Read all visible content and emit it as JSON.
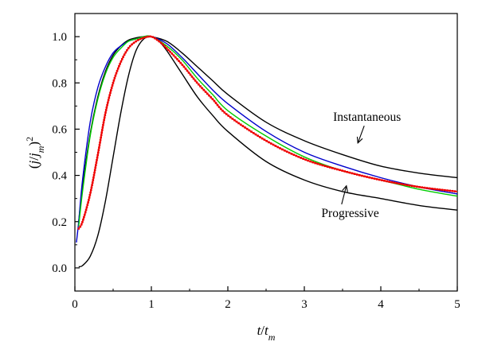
{
  "chart_data": {
    "type": "line",
    "xlabel": "t/tm",
    "ylabel": "(j/jm)2",
    "xlim": [
      0,
      5
    ],
    "ylim": [
      -0.1,
      1.1
    ],
    "x_ticks": [
      0,
      1,
      2,
      3,
      4,
      5
    ],
    "y_ticks": [
      0.0,
      0.2,
      0.4,
      0.6,
      0.8,
      1.0
    ],
    "x_tick_labels": [
      "0",
      "1",
      "2",
      "3",
      "4",
      "5"
    ],
    "y_tick_labels": [
      "0.0",
      "0.2",
      "0.4",
      "0.6",
      "0.8",
      "1.0"
    ],
    "grid": false,
    "legend": "none",
    "series": [
      {
        "color": "#000000",
        "x": [
          0.05,
          0.1,
          0.2,
          0.3,
          0.4,
          0.5,
          0.6,
          0.7,
          0.8,
          0.9,
          1.0,
          1.2,
          1.4,
          1.6,
          1.8,
          2.0,
          2.5,
          3.0,
          3.5,
          4.0,
          4.5,
          5.0
        ],
        "y": [
          0.2,
          0.35,
          0.58,
          0.74,
          0.85,
          0.92,
          0.96,
          0.985,
          0.995,
          1.0,
          1.0,
          0.98,
          0.93,
          0.87,
          0.81,
          0.75,
          0.63,
          0.55,
          0.49,
          0.44,
          0.41,
          0.39
        ]
      },
      {
        "color": "#000000",
        "x": [
          0.05,
          0.1,
          0.2,
          0.3,
          0.4,
          0.5,
          0.6,
          0.7,
          0.8,
          0.9,
          1.0,
          1.1,
          1.2,
          1.4,
          1.6,
          1.8,
          2.0,
          2.5,
          3.0,
          3.5,
          4.0,
          4.5,
          5.0
        ],
        "y": [
          0.005,
          0.01,
          0.05,
          0.14,
          0.29,
          0.48,
          0.67,
          0.83,
          0.94,
          0.99,
          1.0,
          0.98,
          0.94,
          0.84,
          0.74,
          0.66,
          0.59,
          0.46,
          0.38,
          0.33,
          0.3,
          0.27,
          0.25
        ]
      },
      {
        "color": "#0000cc",
        "x": [
          0.02,
          0.05,
          0.1,
          0.2,
          0.3,
          0.4,
          0.5,
          0.6,
          0.7,
          0.8,
          0.9,
          1.0,
          1.2,
          1.4,
          1.6,
          1.8,
          2.0,
          2.5,
          3.0,
          3.5,
          4.0,
          4.5,
          5.0
        ],
        "y": [
          0.11,
          0.2,
          0.38,
          0.63,
          0.78,
          0.87,
          0.93,
          0.96,
          0.98,
          0.99,
          1.0,
          1.0,
          0.97,
          0.91,
          0.84,
          0.77,
          0.71,
          0.59,
          0.5,
          0.44,
          0.39,
          0.35,
          0.32
        ]
      },
      {
        "color": "#00cc00",
        "x": [
          0.05,
          0.1,
          0.2,
          0.3,
          0.4,
          0.5,
          0.6,
          0.7,
          0.8,
          0.9,
          1.0,
          1.2,
          1.4,
          1.6,
          1.8,
          2.0,
          2.5,
          3.0,
          3.5,
          4.0,
          4.5,
          5.0
        ],
        "y": [
          0.18,
          0.33,
          0.57,
          0.73,
          0.84,
          0.91,
          0.95,
          0.98,
          0.99,
          1.0,
          1.0,
          0.96,
          0.9,
          0.82,
          0.75,
          0.68,
          0.57,
          0.48,
          0.42,
          0.38,
          0.34,
          0.31
        ]
      },
      {
        "color": "#ee0000",
        "markers": true,
        "x": [
          0.05,
          0.1,
          0.2,
          0.3,
          0.4,
          0.5,
          0.6,
          0.7,
          0.8,
          0.9,
          1.0,
          1.1,
          1.2,
          1.4,
          1.6,
          1.8,
          2.0,
          2.5,
          3.0,
          3.5,
          4.0,
          4.5,
          5.0
        ],
        "y": [
          0.17,
          0.2,
          0.32,
          0.49,
          0.67,
          0.8,
          0.89,
          0.95,
          0.98,
          0.995,
          1.0,
          0.98,
          0.95,
          0.88,
          0.8,
          0.73,
          0.66,
          0.55,
          0.47,
          0.42,
          0.38,
          0.35,
          0.33
        ]
      }
    ],
    "annotations": [
      {
        "text": "Instantaneous",
        "x": 3.82,
        "y": 0.635,
        "arrow_to": [
          3.7,
          0.54
        ]
      },
      {
        "text": "Progressive",
        "x": 3.6,
        "y": 0.22,
        "arrow_to": [
          3.55,
          0.355
        ]
      }
    ]
  }
}
